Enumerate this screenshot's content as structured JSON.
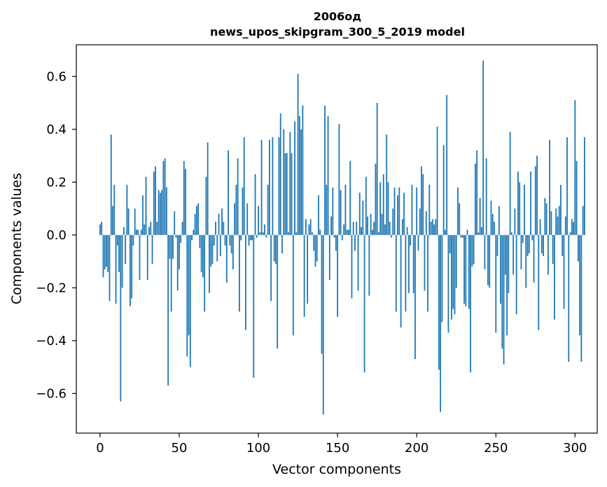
{
  "chart_data": {
    "type": "bar",
    "title_line1": "2006од",
    "title_line2": "news_upos_skipgram_300_5_2019 model",
    "xlabel": "Vector components",
    "ylabel": "Components values",
    "xlim": [
      -15,
      314
    ],
    "ylim": [
      -0.75,
      0.72
    ],
    "xticks": [
      {
        "value": 0,
        "label": "0"
      },
      {
        "value": 50,
        "label": "50"
      },
      {
        "value": 100,
        "label": "100"
      },
      {
        "value": 150,
        "label": "150"
      },
      {
        "value": 200,
        "label": "200"
      },
      {
        "value": 250,
        "label": "250"
      },
      {
        "value": 300,
        "label": "300"
      }
    ],
    "yticks": [
      {
        "value": 0.6,
        "label": "0.6"
      },
      {
        "value": 0.4,
        "label": "0.4"
      },
      {
        "value": 0.2,
        "label": "0.2"
      },
      {
        "value": 0.0,
        "label": "0.0"
      },
      {
        "value": -0.2,
        "label": "−0.2"
      },
      {
        "value": -0.4,
        "label": "−0.4"
      },
      {
        "value": -0.6,
        "label": "−0.6"
      }
    ],
    "bar_color": "#1f77b4",
    "grid": false,
    "values": [
      0.04,
      0.05,
      -0.16,
      -0.13,
      -0.12,
      -0.14,
      -0.25,
      0.38,
      0.11,
      0.19,
      -0.26,
      -0.04,
      -0.14,
      -0.63,
      -0.2,
      0.03,
      -0.11,
      0.19,
      0.1,
      -0.27,
      -0.24,
      -0.04,
      0.1,
      0.02,
      0.02,
      -0.17,
      0.02,
      0.15,
      0.04,
      0.22,
      -0.17,
      0.03,
      0.05,
      -0.11,
      0.24,
      0.26,
      0.05,
      0.17,
      0.16,
      0.17,
      0.28,
      0.29,
      0.18,
      -0.57,
      -0.09,
      -0.29,
      -0.09,
      0.09,
      -0.01,
      -0.21,
      -0.13,
      -0.03,
      0.05,
      0.28,
      0.25,
      -0.46,
      -0.38,
      -0.5,
      -0.02,
      0.02,
      0.08,
      0.11,
      0.12,
      -0.05,
      -0.14,
      -0.16,
      -0.29,
      0.22,
      0.35,
      -0.22,
      -0.12,
      -0.11,
      -0.04,
      0.05,
      -0.1,
      0.08,
      -0.08,
      0.1,
      0.05,
      -0.04,
      -0.18,
      0.32,
      -0.04,
      -0.07,
      -0.13,
      0.12,
      0.19,
      0.29,
      -0.29,
      -0.02,
      0.18,
      0.37,
      -0.36,
      0.12,
      -0.04,
      -0.02,
      -0.02,
      -0.54,
      0.23,
      -0.01,
      0.11,
      0.01,
      0.36,
      0.01,
      0.04,
      -0.01,
      0.19,
      0.36,
      -0.25,
      0.37,
      -0.1,
      -0.11,
      -0.43,
      0.37,
      0.46,
      -0.07,
      0.4,
      0.31,
      0.31,
      0.01,
      0.39,
      0.31,
      -0.38,
      0.43,
      0.01,
      0.61,
      0.45,
      0.4,
      0.49,
      -0.31,
      0.06,
      -0.26,
      0.04,
      0.06,
      0.01,
      -0.06,
      -0.12,
      -0.1,
      0.15,
      0.02,
      -0.45,
      -0.68,
      0.49,
      0.19,
      0.45,
      -0.17,
      0.07,
      0.18,
      -0.01,
      -0.06,
      -0.31,
      0.42,
      0.17,
      -0.02,
      0.04,
      0.19,
      0.02,
      0.02,
      0.28,
      -0.24,
      0.05,
      -0.06,
      0.05,
      -0.21,
      0.16,
      0.03,
      0.13,
      -0.52,
      0.22,
      0.07,
      -0.23,
      0.08,
      0.02,
      0.05,
      0.27,
      0.5,
      0.01,
      0.2,
      0.08,
      0.23,
      0.04,
      0.38,
      0.2,
      0.05,
      -0.01,
      0.1,
      0.18,
      -0.29,
      0.15,
      0.18,
      -0.35,
      0.06,
      0.16,
      -0.29,
      0.03,
      -0.22,
      -0.04,
      0.19,
      -0.22,
      -0.47,
      0.18,
      -0.06,
      0.1,
      0.26,
      0.23,
      -0.21,
      0.09,
      -0.29,
      0.19,
      0.05,
      0.06,
      0.04,
      0.06,
      0.41,
      -0.51,
      -0.67,
      -0.33,
      0.34,
      0.02,
      0.53,
      -0.37,
      -0.07,
      -0.32,
      -0.28,
      -0.3,
      -0.2,
      0.18,
      0.12,
      -0.01,
      -0.01,
      -0.26,
      -0.27,
      0.02,
      -0.28,
      -0.52,
      -0.12,
      -0.11,
      0.27,
      0.32,
      0.01,
      0.14,
      0.03,
      0.66,
      -0.13,
      0.29,
      -0.19,
      -0.2,
      0.13,
      0.08,
      0.05,
      -0.37,
      -0.08,
      0.11,
      -0.26,
      -0.43,
      -0.49,
      -0.15,
      -0.38,
      -0.22,
      0.39,
      0.01,
      -0.15,
      0.1,
      -0.3,
      0.24,
      0.2,
      -0.13,
      -0.03,
      0.19,
      -0.2,
      -0.08,
      -0.07,
      0.24,
      -0.02,
      -0.18,
      0.26,
      0.3,
      -0.36,
      0.06,
      -0.07,
      -0.08,
      0.14,
      0.12,
      -0.15,
      0.36,
      0.09,
      -0.11,
      -0.32,
      0.1,
      0.07,
      0.11,
      0.19,
      -0.08,
      -0.28,
      0.07,
      0.37,
      -0.48,
      0.01,
      0.06,
      0.05,
      0.51,
      0.28,
      -0.1,
      -0.38,
      -0.48,
      0.11,
      0.37
    ]
  }
}
